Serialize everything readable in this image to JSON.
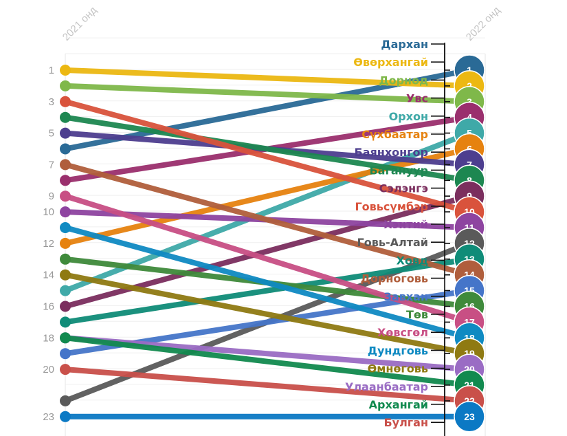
{
  "chart_data": {
    "type": "slope",
    "columns": [
      "2021 онд",
      "2022 онд"
    ],
    "y_tick_labels": [
      "1",
      "3",
      "5",
      "7",
      "9",
      "10",
      "12",
      "14",
      "16",
      "18",
      "20",
      "23"
    ],
    "series": [
      {
        "name": "Дархан",
        "color": "#2a6a96",
        "rank_2021": 6,
        "rank_2022": 1
      },
      {
        "name": "Өвөрхангай",
        "color": "#ecb812",
        "rank_2021": 1,
        "rank_2022": 2
      },
      {
        "name": "Дорнод",
        "color": "#7fb84a",
        "rank_2021": 2,
        "rank_2022": 3
      },
      {
        "name": "Увс",
        "color": "#9a2f6d",
        "rank_2021": 8,
        "rank_2022": 4
      },
      {
        "name": "Орхон",
        "color": "#3fa9a8",
        "rank_2021": 15,
        "rank_2022": 5
      },
      {
        "name": "Сүхбаатар",
        "color": "#e6820f",
        "rank_2021": 12,
        "rank_2022": 6
      },
      {
        "name": "Баянхонгор",
        "color": "#4d3e8f",
        "rank_2021": 5,
        "rank_2022": 7
      },
      {
        "name": "Багануур",
        "color": "#1d8751",
        "rank_2021": 4,
        "rank_2022": 8
      },
      {
        "name": "Сэлэнгэ",
        "color": "#7b2e5e",
        "rank_2021": 16,
        "rank_2022": 9
      },
      {
        "name": "Говьсүмбэр",
        "color": "#d9533c",
        "rank_2021": 3,
        "rank_2022": 10
      },
      {
        "name": "Хэнтий",
        "color": "#8e44a0",
        "rank_2021": 10,
        "rank_2022": 11
      },
      {
        "name": "Говь-Алтай",
        "color": "#5a5a5a",
        "rank_2021": 22,
        "rank_2022": 12
      },
      {
        "name": "Ховд",
        "color": "#0f8c78",
        "rank_2021": 17,
        "rank_2022": 13
      },
      {
        "name": "Дорноговь",
        "color": "#b05e3c",
        "rank_2021": 7,
        "rank_2022": 14
      },
      {
        "name": "Завхан",
        "color": "#4575c9",
        "rank_2021": 19,
        "rank_2022": 15
      },
      {
        "name": "Төв",
        "color": "#3f8a3b",
        "rank_2021": 13,
        "rank_2022": 16
      },
      {
        "name": "Хөвсгөл",
        "color": "#c84f84",
        "rank_2021": 9,
        "rank_2022": 17
      },
      {
        "name": "Дундговь",
        "color": "#0f8ac2",
        "rank_2021": 11,
        "rank_2022": 18
      },
      {
        "name": "Өмнөговь",
        "color": "#8f7a12",
        "rank_2021": 14,
        "rank_2022": 19
      },
      {
        "name": "Улаанбаатар",
        "color": "#9a6cc4",
        "rank_2021": 18,
        "rank_2022": 20
      },
      {
        "name": "Архангай",
        "color": "#118a4f",
        "rank_2021": 18,
        "rank_2022": 21
      },
      {
        "name": "Булган",
        "color": "#c9504a",
        "rank_2021": 20,
        "rank_2022": 22
      },
      {
        "name": "",
        "color": "#0b79c4",
        "rank_2021": 23,
        "rank_2022": 23
      }
    ],
    "y_range": [
      1,
      23
    ]
  }
}
